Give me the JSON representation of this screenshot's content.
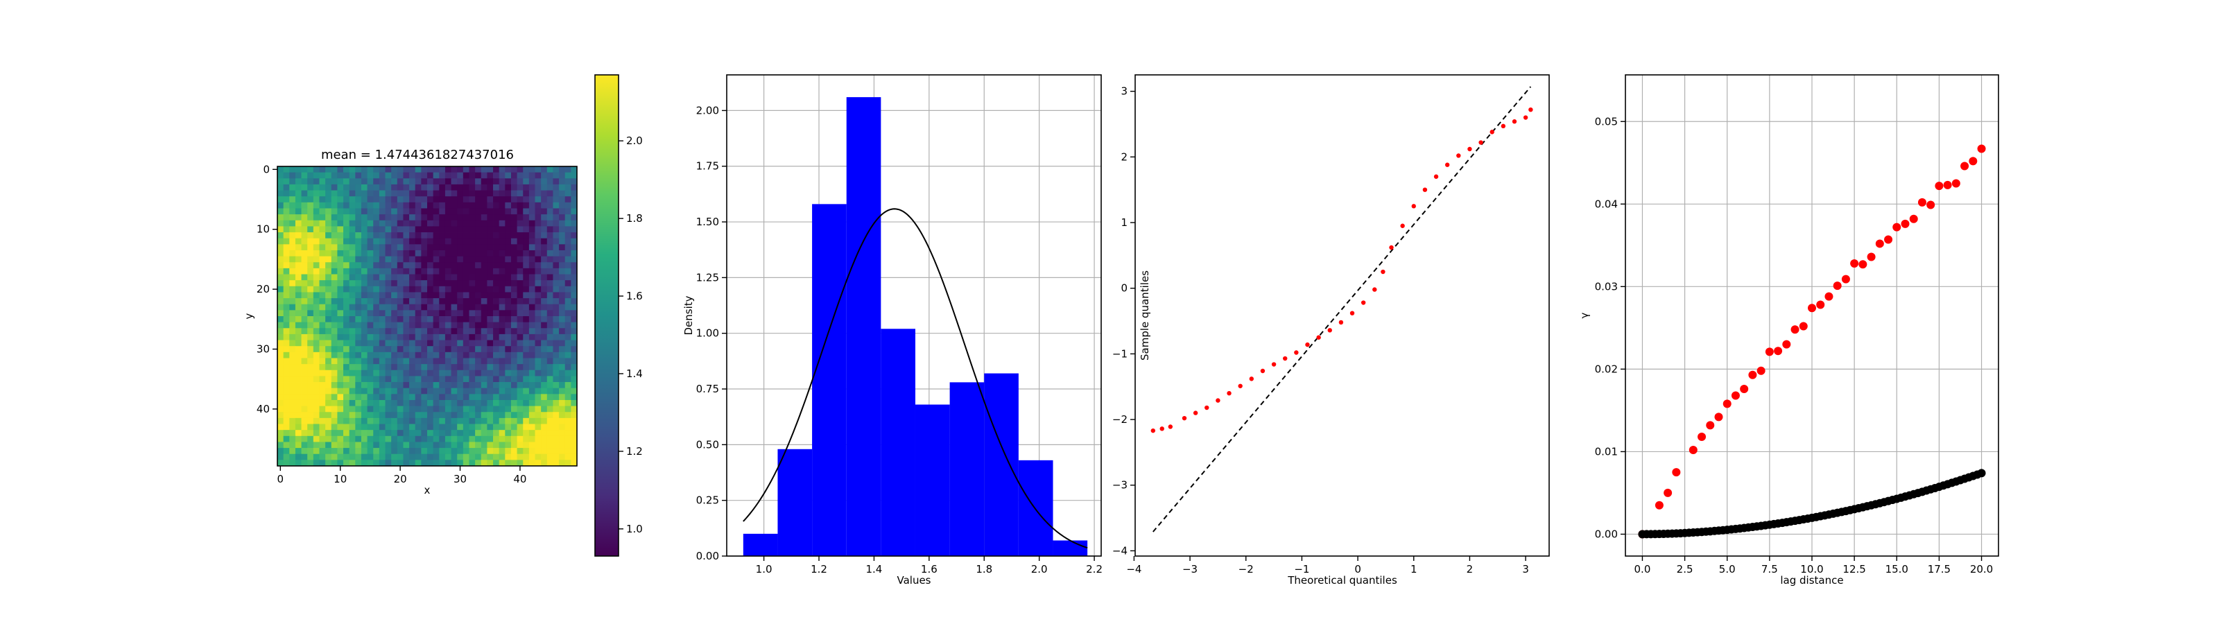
{
  "chart_data": [
    {
      "type": "heatmap",
      "title": "mean = 1.4744361827437016",
      "xlabel": "x",
      "ylabel": "y",
      "grid_size": [
        50,
        50
      ],
      "xlim": [
        -0.5,
        49.5
      ],
      "ylim": [
        49.5,
        -0.5
      ],
      "xticks": [
        0,
        10,
        20,
        30,
        40
      ],
      "yticks": [
        0,
        10,
        20,
        30,
        40
      ],
      "colormap": "viridis",
      "colorbar": {
        "range": [
          0.93,
          2.17
        ],
        "ticks": [
          1.0,
          1.2,
          1.4,
          1.6,
          1.8,
          2.0
        ]
      },
      "grid": false
    },
    {
      "type": "bar",
      "xlabel": "Values",
      "ylabel": "Density",
      "xlim": [
        0.865,
        2.225
      ],
      "ylim": [
        0,
        2.16
      ],
      "xticks": [
        1.0,
        1.2,
        1.4,
        1.6,
        1.8,
        2.0,
        2.2
      ],
      "yticks": [
        0.0,
        0.25,
        0.5,
        0.75,
        1.0,
        1.25,
        1.5,
        1.75,
        2.0
      ],
      "bin_edges": [
        0.925,
        1.05,
        1.175,
        1.3,
        1.425,
        1.55,
        1.675,
        1.8,
        1.925,
        2.05,
        2.175
      ],
      "values": [
        0.1,
        0.48,
        1.58,
        2.06,
        1.02,
        0.68,
        0.78,
        0.82,
        0.43,
        0.07
      ],
      "bar_color": "#0000ff",
      "curve": {
        "type": "normal-pdf",
        "mean": 1.4744,
        "sd": 0.256,
        "color": "#000000"
      },
      "grid": true
    },
    {
      "type": "scatter",
      "xlabel": "Theoretical quantiles",
      "ylabel": "Sample quantiles",
      "xlim": [
        -3.98,
        3.42
      ],
      "ylim": [
        -4.08,
        3.25
      ],
      "xticks": [
        -4,
        -3,
        -2,
        -1,
        0,
        1,
        2,
        3
      ],
      "yticks": [
        -4,
        -3,
        -2,
        -1,
        0,
        1,
        2,
        3
      ],
      "reference_line": {
        "x": [
          -3.66,
          3.09
        ],
        "y": [
          -3.71,
          3.07
        ],
        "style": "dashed"
      },
      "points": [
        [
          -3.66,
          -2.17
        ],
        [
          -3.5,
          -2.14
        ],
        [
          -3.35,
          -2.11
        ],
        [
          -3.1,
          -1.98
        ],
        [
          -2.9,
          -1.9
        ],
        [
          -2.7,
          -1.82
        ],
        [
          -2.5,
          -1.71
        ],
        [
          -2.3,
          -1.6
        ],
        [
          -2.1,
          -1.49
        ],
        [
          -1.9,
          -1.38
        ],
        [
          -1.7,
          -1.26
        ],
        [
          -1.5,
          -1.16
        ],
        [
          -1.3,
          -1.07
        ],
        [
          -1.1,
          -0.98
        ],
        [
          -0.9,
          -0.86
        ],
        [
          -0.7,
          -0.75
        ],
        [
          -0.5,
          -0.64
        ],
        [
          -0.3,
          -0.52
        ],
        [
          -0.1,
          -0.38
        ],
        [
          0.1,
          -0.22
        ],
        [
          0.3,
          -0.02
        ],
        [
          0.45,
          0.25
        ],
        [
          0.6,
          0.62
        ],
        [
          0.8,
          0.95
        ],
        [
          1.0,
          1.25
        ],
        [
          1.2,
          1.5
        ],
        [
          1.4,
          1.7
        ],
        [
          1.6,
          1.88
        ],
        [
          1.8,
          2.02
        ],
        [
          2.0,
          2.12
        ],
        [
          2.2,
          2.22
        ],
        [
          2.4,
          2.38
        ],
        [
          2.6,
          2.47
        ],
        [
          2.8,
          2.54
        ],
        [
          3.0,
          2.6
        ],
        [
          3.09,
          2.72
        ]
      ],
      "point_color": "#ff0000",
      "grid": false
    },
    {
      "type": "scatter",
      "xlabel": "lag distance",
      "ylabel": "γ",
      "xlim": [
        -1.0,
        21.0
      ],
      "ylim": [
        -0.00265,
        0.05565
      ],
      "xticks": [
        0.0,
        2.5,
        5.0,
        7.5,
        10.0,
        12.5,
        15.0,
        17.5,
        20.0
      ],
      "yticks": [
        0.0,
        0.01,
        0.02,
        0.03,
        0.04,
        0.05
      ],
      "series": [
        {
          "color": "#ff0000",
          "x": [
            0,
            1,
            1.5,
            2,
            3,
            3.5,
            4,
            4.5,
            5,
            5.5,
            6,
            6.5,
            7,
            7.5,
            8,
            8.5,
            9,
            9.5,
            10,
            10.5,
            11,
            11.5,
            12,
            12.5,
            13,
            13.5,
            14,
            14.5,
            15,
            15.5,
            16,
            16.5,
            17,
            17.5,
            18,
            18.5,
            19,
            19.5,
            20
          ],
          "y": [
            0.0,
            0.0035,
            0.005,
            0.0075,
            0.0102,
            0.0118,
            0.0132,
            0.0142,
            0.0158,
            0.0168,
            0.0176,
            0.0193,
            0.0198,
            0.0221,
            0.0222,
            0.023,
            0.0248,
            0.0252,
            0.0274,
            0.0278,
            0.0288,
            0.0301,
            0.0309,
            0.0328,
            0.0327,
            0.0336,
            0.0352,
            0.0357,
            0.0372,
            0.0376,
            0.0382,
            0.0402,
            0.0399,
            0.0422,
            0.0423,
            0.0425,
            0.0446,
            0.0452,
            0.0467
          ]
        },
        {
          "color": "#000000",
          "curve": {
            "x_range": [
              0,
              20
            ],
            "y_at_max": 0.0074,
            "power": 1.9,
            "step": 0.25
          }
        }
      ],
      "grid": true
    }
  ]
}
